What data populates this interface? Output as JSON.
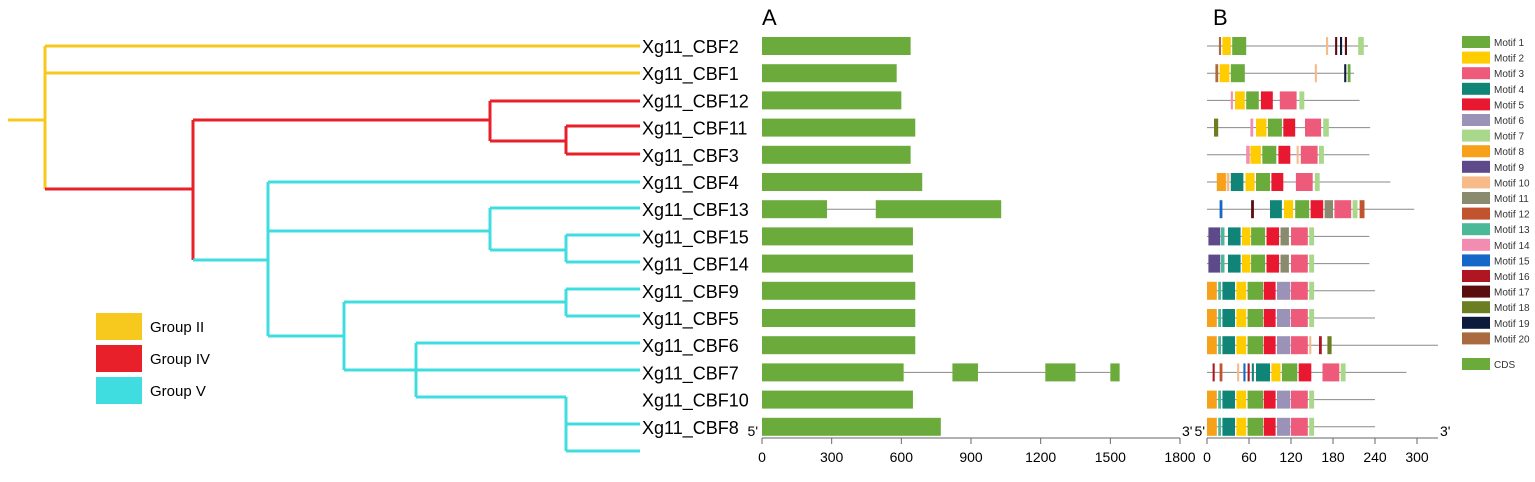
{
  "panels": {
    "a": "A",
    "b": "B"
  },
  "genes": [
    "Xg11_CBF2",
    "Xg11_CBF1",
    "Xg11_CBF12",
    "Xg11_CBF11",
    "Xg11_CBF3",
    "Xg11_CBF4",
    "Xg11_CBF13",
    "Xg11_CBF15",
    "Xg11_CBF14",
    "Xg11_CBF9",
    "Xg11_CBF5",
    "Xg11_CBF6",
    "Xg11_CBF7",
    "Xg11_CBF10",
    "Xg11_CBF8"
  ],
  "groups": [
    {
      "label": "Group II",
      "color": "#F7C81E"
    },
    {
      "label": "Group IV",
      "color": "#E8202A"
    },
    {
      "label": "Group V",
      "color": "#3FDCE0"
    }
  ],
  "axisA": {
    "ticks": [
      "0",
      "300",
      "600",
      "900",
      "1200",
      "1500",
      "1800"
    ],
    "start": "5'",
    "end": "3'",
    "max": 1800
  },
  "axisB": {
    "ticks": [
      "0",
      "60",
      "120",
      "180",
      "240",
      "300"
    ],
    "start": "5'",
    "end": "3'",
    "max": 330
  },
  "geneStructures": [
    {
      "len": 640,
      "exons": [
        [
          0,
          640
        ]
      ]
    },
    {
      "len": 580,
      "exons": [
        [
          0,
          580
        ]
      ]
    },
    {
      "len": 600,
      "exons": [
        [
          0,
          600
        ]
      ]
    },
    {
      "len": 660,
      "exons": [
        [
          0,
          660
        ]
      ]
    },
    {
      "len": 640,
      "exons": [
        [
          0,
          640
        ]
      ]
    },
    {
      "len": 690,
      "exons": [
        [
          0,
          690
        ]
      ]
    },
    {
      "len": 1030,
      "exons": [
        [
          0,
          280
        ],
        [
          490,
          1030
        ]
      ]
    },
    {
      "len": 650,
      "exons": [
        [
          0,
          650
        ]
      ]
    },
    {
      "len": 650,
      "exons": [
        [
          0,
          650
        ]
      ]
    },
    {
      "len": 660,
      "exons": [
        [
          0,
          660
        ]
      ]
    },
    {
      "len": 660,
      "exons": [
        [
          0,
          660
        ]
      ]
    },
    {
      "len": 660,
      "exons": [
        [
          0,
          660
        ]
      ]
    },
    {
      "len": 1540,
      "exons": [
        [
          0,
          610
        ],
        [
          820,
          930
        ],
        [
          1220,
          1350
        ],
        [
          1500,
          1540
        ]
      ]
    },
    {
      "len": 650,
      "exons": [
        [
          0,
          650
        ]
      ]
    },
    {
      "len": 770,
      "exons": [
        [
          0,
          770
        ]
      ]
    }
  ],
  "motifs": [
    {
      "name": "Motif 1",
      "color": "#6AAB3B"
    },
    {
      "name": "Motif 2",
      "color": "#FFCC00"
    },
    {
      "name": "Motif 3",
      "color": "#EE5A7A"
    },
    {
      "name": "Motif 4",
      "color": "#108577"
    },
    {
      "name": "Motif 5",
      "color": "#E81830"
    },
    {
      "name": "Motif 6",
      "color": "#9B93B7"
    },
    {
      "name": "Motif 7",
      "color": "#A9D88A"
    },
    {
      "name": "Motif 8",
      "color": "#F7A019"
    },
    {
      "name": "Motif 9",
      "color": "#5E4A8A"
    },
    {
      "name": "Motif 10",
      "color": "#F7BB8A"
    },
    {
      "name": "Motif 11",
      "color": "#8A8A6E"
    },
    {
      "name": "Motif 12",
      "color": "#C1542F"
    },
    {
      "name": "Motif 13",
      "color": "#4BB898"
    },
    {
      "name": "Motif 14",
      "color": "#F28CB0"
    },
    {
      "name": "Motif 15",
      "color": "#1668C8"
    },
    {
      "name": "Motif 16",
      "color": "#B01522"
    },
    {
      "name": "Motif 17",
      "color": "#5A0E0E"
    },
    {
      "name": "Motif 18",
      "color": "#6C7E22"
    },
    {
      "name": "Motif 19",
      "color": "#0E1A3C"
    },
    {
      "name": "Motif 20",
      "color": "#A86A3E"
    }
  ],
  "cds": {
    "name": "CDS",
    "color": "#6AAB3B"
  },
  "proteins": [
    {
      "len": 230,
      "m": [
        [
          17,
          3,
          20
        ],
        [
          22,
          12,
          2
        ],
        [
          36,
          20,
          1
        ],
        [
          170,
          3,
          10
        ],
        [
          183,
          3,
          17
        ],
        [
          190,
          3,
          19
        ],
        [
          197,
          3,
          17
        ],
        [
          216,
          8,
          7
        ]
      ]
    },
    {
      "len": 210,
      "m": [
        [
          12,
          4,
          20
        ],
        [
          18,
          14,
          2
        ],
        [
          34,
          20,
          1
        ],
        [
          154,
          3,
          10
        ],
        [
          196,
          3,
          19
        ],
        [
          201,
          4,
          1
        ]
      ]
    },
    {
      "len": 218,
      "m": [
        [
          34,
          3,
          14
        ],
        [
          40,
          14,
          2
        ],
        [
          56,
          18,
          1
        ],
        [
          77,
          17,
          5
        ],
        [
          104,
          24,
          3
        ],
        [
          132,
          7,
          7
        ]
      ]
    },
    {
      "len": 233,
      "m": [
        [
          10,
          6,
          18
        ],
        [
          62,
          4,
          14
        ],
        [
          70,
          15,
          2
        ],
        [
          87,
          20,
          1
        ],
        [
          109,
          17,
          5
        ],
        [
          140,
          23,
          3
        ],
        [
          166,
          8,
          7
        ]
      ]
    },
    {
      "len": 232,
      "m": [
        [
          56,
          5,
          14
        ],
        [
          62,
          15,
          2
        ],
        [
          79,
          20,
          1
        ],
        [
          102,
          17,
          5
        ],
        [
          128,
          3,
          10
        ],
        [
          134,
          24,
          3
        ],
        [
          160,
          7,
          7
        ]
      ]
    },
    {
      "len": 262,
      "m": [
        [
          14,
          13,
          8
        ],
        [
          28,
          4,
          10
        ],
        [
          34,
          18,
          4
        ],
        [
          55,
          13,
          2
        ],
        [
          70,
          20,
          1
        ],
        [
          92,
          17,
          5
        ],
        [
          127,
          24,
          3
        ],
        [
          154,
          7,
          7
        ]
      ]
    },
    {
      "len": 296,
      "m": [
        [
          18,
          4,
          15
        ],
        [
          63,
          4,
          17
        ],
        [
          90,
          17,
          4
        ],
        [
          110,
          13,
          2
        ],
        [
          126,
          20,
          1
        ],
        [
          148,
          18,
          5
        ],
        [
          168,
          12,
          11
        ],
        [
          182,
          24,
          3
        ],
        [
          208,
          7,
          7
        ],
        [
          218,
          7,
          12
        ]
      ]
    },
    {
      "len": 232,
      "m": [
        [
          2,
          17,
          9
        ],
        [
          20,
          5,
          13
        ],
        [
          30,
          18,
          4
        ],
        [
          50,
          12,
          2
        ],
        [
          63,
          20,
          1
        ],
        [
          85,
          18,
          5
        ],
        [
          105,
          12,
          11
        ],
        [
          120,
          24,
          3
        ],
        [
          146,
          7,
          7
        ]
      ]
    },
    {
      "len": 232,
      "m": [
        [
          2,
          17,
          9
        ],
        [
          20,
          5,
          13
        ],
        [
          30,
          18,
          4
        ],
        [
          50,
          12,
          2
        ],
        [
          63,
          20,
          1
        ],
        [
          85,
          18,
          5
        ],
        [
          105,
          12,
          11
        ],
        [
          120,
          24,
          3
        ],
        [
          146,
          7,
          7
        ]
      ]
    },
    {
      "len": 240,
      "m": [
        [
          0,
          14,
          8
        ],
        [
          16,
          4,
          13
        ],
        [
          22,
          18,
          4
        ],
        [
          42,
          14,
          2
        ],
        [
          58,
          22,
          1
        ],
        [
          81,
          17,
          5
        ],
        [
          100,
          19,
          6
        ],
        [
          120,
          24,
          3
        ],
        [
          146,
          7,
          7
        ]
      ]
    },
    {
      "len": 240,
      "m": [
        [
          0,
          14,
          8
        ],
        [
          16,
          4,
          13
        ],
        [
          22,
          18,
          4
        ],
        [
          42,
          14,
          2
        ],
        [
          58,
          22,
          1
        ],
        [
          81,
          17,
          5
        ],
        [
          100,
          19,
          6
        ],
        [
          120,
          24,
          3
        ],
        [
          146,
          7,
          7
        ]
      ]
    },
    {
      "len": 330,
      "m": [
        [
          0,
          14,
          8
        ],
        [
          16,
          4,
          13
        ],
        [
          22,
          18,
          4
        ],
        [
          42,
          14,
          2
        ],
        [
          58,
          22,
          1
        ],
        [
          81,
          17,
          5
        ],
        [
          100,
          19,
          6
        ],
        [
          120,
          24,
          3
        ],
        [
          146,
          3,
          10
        ],
        [
          160,
          4,
          16
        ],
        [
          172,
          6,
          18
        ]
      ]
    },
    {
      "len": 285,
      "m": [
        [
          8,
          3,
          16
        ],
        [
          18,
          4,
          12
        ],
        [
          43,
          3,
          10
        ],
        [
          52,
          3,
          15
        ],
        [
          58,
          3,
          16
        ],
        [
          64,
          3,
          4
        ],
        [
          70,
          20,
          4
        ],
        [
          92,
          13,
          2
        ],
        [
          107,
          22,
          1
        ],
        [
          131,
          18,
          5
        ],
        [
          165,
          24,
          3
        ],
        [
          191,
          7,
          7
        ]
      ]
    },
    {
      "len": 240,
      "m": [
        [
          0,
          14,
          8
        ],
        [
          16,
          4,
          13
        ],
        [
          22,
          18,
          4
        ],
        [
          42,
          14,
          2
        ],
        [
          58,
          22,
          1
        ],
        [
          81,
          17,
          5
        ],
        [
          100,
          19,
          6
        ],
        [
          120,
          24,
          3
        ],
        [
          146,
          7,
          7
        ]
      ]
    },
    {
      "len": 240,
      "m": [
        [
          0,
          14,
          8
        ],
        [
          16,
          4,
          13
        ],
        [
          22,
          18,
          4
        ],
        [
          42,
          14,
          2
        ],
        [
          58,
          22,
          1
        ],
        [
          81,
          17,
          5
        ],
        [
          100,
          19,
          6
        ],
        [
          120,
          24,
          3
        ],
        [
          146,
          7,
          7
        ]
      ]
    }
  ]
}
